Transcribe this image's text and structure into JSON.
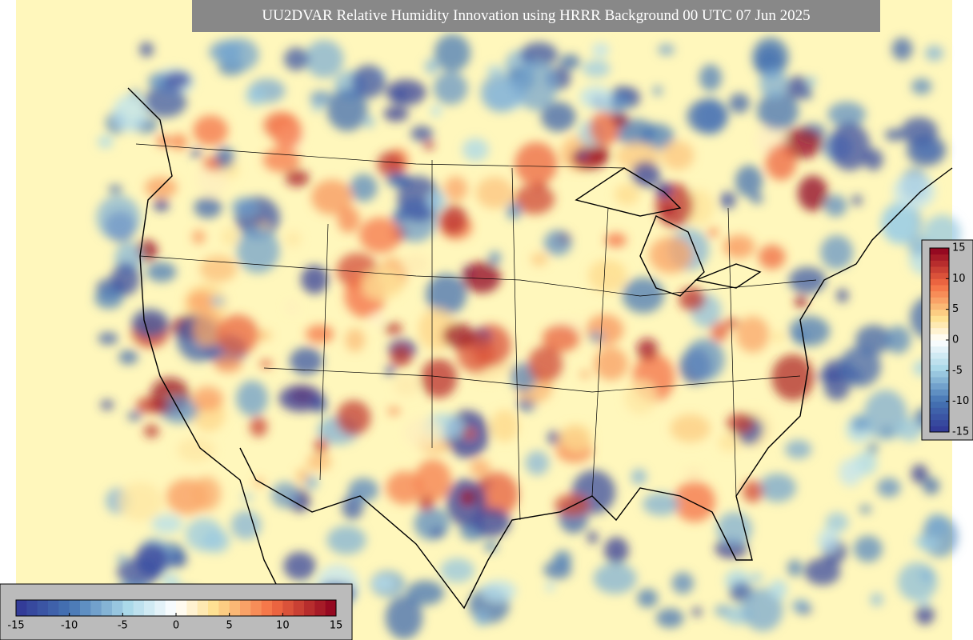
{
  "title": "UU2DVAR Relative Humidity Innovation using HRRR Background 00 UTC 07 Jun 2025",
  "colorbar_horizontal": {
    "lim": [
      -15,
      15
    ],
    "ticks": [
      -15,
      -10,
      -5,
      0,
      5,
      10,
      15
    ]
  },
  "colorbar_vertical": {
    "lim": [
      -15,
      15
    ],
    "ticks": [
      15,
      10,
      5,
      0,
      -5,
      -10,
      -15
    ]
  }
}
